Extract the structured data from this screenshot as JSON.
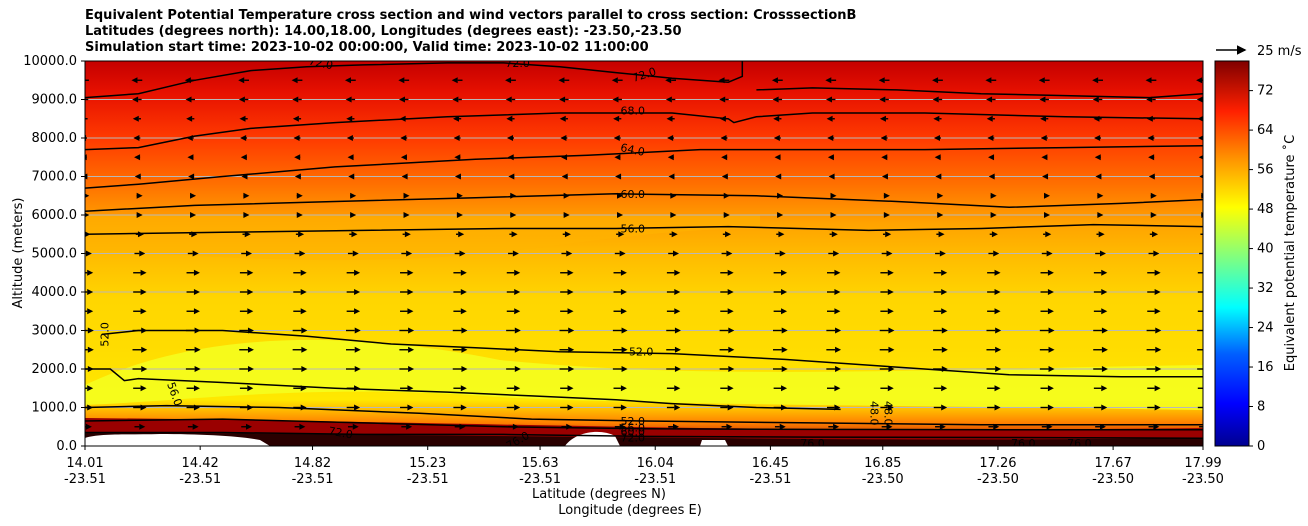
{
  "chart_data": {
    "type": "contour",
    "title_lines": [
      "Equivalent Potential Temperature cross section and wind vectors parallel to cross section: CrosssectionB",
      "Latitudes (degrees north): 14.00,18.00, Longitudes (degrees east): -23.50,-23.50",
      "Simulation start time: 2023-10-02 00:00:00, Valid time: 2023-10-02 11:00:00"
    ],
    "ylabel": "Altitude (meters)",
    "xlabel_lat": "Latitude (degrees N)",
    "xlabel_lon": "Longitude (degrees E)",
    "ylim": [
      0,
      10000
    ],
    "yticks": [
      "0.0",
      "1000.0",
      "2000.0",
      "3000.0",
      "4000.0",
      "5000.0",
      "6000.0",
      "7000.0",
      "8000.0",
      "9000.0",
      "10000.0"
    ],
    "ytick_values": [
      0,
      1000,
      2000,
      3000,
      4000,
      5000,
      6000,
      7000,
      8000,
      9000,
      10000
    ],
    "xlim": [
      14.01,
      17.99
    ],
    "xticks": [
      {
        "lat": "14.01",
        "lon": "-23.51",
        "value": 14.01
      },
      {
        "lat": "14.42",
        "lon": "-23.51",
        "value": 14.42
      },
      {
        "lat": "14.82",
        "lon": "-23.51",
        "value": 14.82
      },
      {
        "lat": "15.23",
        "lon": "-23.51",
        "value": 15.23
      },
      {
        "lat": "15.63",
        "lon": "-23.51",
        "value": 15.63
      },
      {
        "lat": "16.04",
        "lon": "-23.51",
        "value": 16.04
      },
      {
        "lat": "16.45",
        "lon": "-23.51",
        "value": 16.45
      },
      {
        "lat": "16.85",
        "lon": "-23.50",
        "value": 16.85
      },
      {
        "lat": "17.26",
        "lon": "-23.50",
        "value": 17.26
      },
      {
        "lat": "17.67",
        "lon": "-23.50",
        "value": 17.67
      },
      {
        "lat": "17.99",
        "lon": "-23.50",
        "value": 17.99
      }
    ],
    "colorbar": {
      "label": "Equivalent potential temperature ˚C",
      "range": [
        0,
        78
      ],
      "ticks": [
        "0",
        "8",
        "16",
        "24",
        "32",
        "40",
        "48",
        "56",
        "64",
        "72"
      ],
      "tick_values": [
        0,
        8,
        16,
        24,
        32,
        40,
        48,
        56,
        64,
        72
      ],
      "colors": {
        "low": "#0000a0",
        "mid": "#00ffff",
        "high": "#800000"
      }
    },
    "quiver_key": {
      "label": "25 m/s",
      "speed": 25
    },
    "contour_labels": [
      {
        "text": "72.0",
        "x": 14.85,
        "z": 9950,
        "rot": 12
      },
      {
        "text": "72.0",
        "x": 15.55,
        "z": 9950,
        "rot": 0
      },
      {
        "text": "72.0",
        "x": 16.0,
        "z": 9650,
        "rot": -18
      },
      {
        "text": "68.0",
        "x": 15.96,
        "z": 8720,
        "rot": 0
      },
      {
        "text": "64.0",
        "x": 15.96,
        "z": 7700,
        "rot": 12
      },
      {
        "text": "60.0",
        "x": 15.96,
        "z": 6550,
        "rot": 0
      },
      {
        "text": "56.0",
        "x": 15.96,
        "z": 5650,
        "rot": 0
      },
      {
        "text": "52.0",
        "x": 15.99,
        "z": 2450,
        "rot": 0
      },
      {
        "text": "52.0",
        "x": 14.08,
        "z": 2900,
        "rot": -90
      },
      {
        "text": "56.0",
        "x": 14.33,
        "z": 1350,
        "rot": 70
      },
      {
        "text": "48.0",
        "x": 16.82,
        "z": 850,
        "rot": 90
      },
      {
        "text": "48.0",
        "x": 16.87,
        "z": 850,
        "rot": 90
      },
      {
        "text": "52.0",
        "x": 15.96,
        "z": 650,
        "rot": 0
      },
      {
        "text": "56.0",
        "x": 15.96,
        "z": 480,
        "rot": 0
      },
      {
        "text": "60.0",
        "x": 15.96,
        "z": 380,
        "rot": 0
      },
      {
        "text": "72.0",
        "x": 15.96,
        "z": 220,
        "rot": 0
      },
      {
        "text": "72.0",
        "x": 14.92,
        "z": 350,
        "rot": 10
      },
      {
        "text": "76.0",
        "x": 15.55,
        "z": 150,
        "rot": -30
      },
      {
        "text": "76.0",
        "x": 16.6,
        "z": 80,
        "rot": 0
      },
      {
        "text": "76.0",
        "x": 17.35,
        "z": 80,
        "rot": 0
      },
      {
        "text": "76.0",
        "x": 17.55,
        "z": 80,
        "rot": 0
      }
    ],
    "contours": [
      {
        "level": 72,
        "points": [
          [
            14.01,
            9050
          ],
          [
            14.2,
            9150
          ],
          [
            14.4,
            9500
          ],
          [
            14.6,
            9750
          ],
          [
            14.8,
            9850
          ],
          [
            15.0,
            9900
          ],
          [
            15.3,
            9950
          ],
          [
            15.5,
            9950
          ],
          [
            15.7,
            9850
          ],
          [
            15.9,
            9700
          ],
          [
            16.1,
            9550
          ],
          [
            16.3,
            9450
          ],
          [
            16.35,
            9600
          ],
          [
            16.35,
            10000
          ]
        ]
      },
      {
        "level": 72,
        "points": [
          [
            16.4,
            9250
          ],
          [
            16.6,
            9300
          ],
          [
            16.9,
            9250
          ],
          [
            17.2,
            9150
          ],
          [
            17.5,
            9100
          ],
          [
            17.8,
            9050
          ],
          [
            17.99,
            9150
          ]
        ]
      },
      {
        "level": 68,
        "points": [
          [
            14.01,
            7700
          ],
          [
            14.2,
            7750
          ],
          [
            14.4,
            8050
          ],
          [
            14.6,
            8250
          ],
          [
            14.9,
            8400
          ],
          [
            15.3,
            8550
          ],
          [
            15.7,
            8650
          ],
          [
            16.1,
            8650
          ],
          [
            16.3,
            8500
          ],
          [
            16.32,
            8400
          ],
          [
            16.4,
            8550
          ],
          [
            16.6,
            8650
          ],
          [
            17.0,
            8650
          ],
          [
            17.5,
            8550
          ],
          [
            17.99,
            8500
          ]
        ]
      },
      {
        "level": 64,
        "points": [
          [
            14.01,
            6700
          ],
          [
            14.2,
            6800
          ],
          [
            14.5,
            7000
          ],
          [
            14.9,
            7250
          ],
          [
            15.4,
            7450
          ],
          [
            15.8,
            7550
          ],
          [
            16.2,
            7700
          ],
          [
            16.6,
            7700
          ],
          [
            17.0,
            7700
          ],
          [
            17.5,
            7750
          ],
          [
            17.99,
            7800
          ]
        ]
      },
      {
        "level": 60,
        "points": [
          [
            14.01,
            6100
          ],
          [
            14.4,
            6250
          ],
          [
            14.9,
            6350
          ],
          [
            15.4,
            6450
          ],
          [
            15.9,
            6550
          ],
          [
            16.4,
            6500
          ],
          [
            16.9,
            6350
          ],
          [
            17.3,
            6200
          ],
          [
            17.7,
            6300
          ],
          [
            17.99,
            6400
          ]
        ]
      },
      {
        "level": 56,
        "points": [
          [
            14.01,
            5500
          ],
          [
            14.5,
            5550
          ],
          [
            15.0,
            5600
          ],
          [
            15.5,
            5650
          ],
          [
            15.9,
            5650
          ],
          [
            16.3,
            5700
          ],
          [
            16.8,
            5600
          ],
          [
            17.2,
            5650
          ],
          [
            17.6,
            5750
          ],
          [
            17.99,
            5700
          ]
        ]
      },
      {
        "level": 52,
        "points": [
          [
            14.07,
            2900
          ],
          [
            14.2,
            3000
          ],
          [
            14.5,
            3000
          ],
          [
            14.8,
            2850
          ],
          [
            15.1,
            2650
          ],
          [
            15.4,
            2550
          ],
          [
            15.7,
            2450
          ],
          [
            16.1,
            2400
          ],
          [
            16.5,
            2250
          ],
          [
            16.9,
            2050
          ],
          [
            17.3,
            1850
          ],
          [
            17.7,
            1800
          ],
          [
            17.99,
            1800
          ]
        ]
      },
      {
        "level": 56,
        "points": [
          [
            14.01,
            2000
          ],
          [
            14.1,
            2000
          ],
          [
            14.15,
            1700
          ],
          [
            14.2,
            1750
          ],
          [
            14.5,
            1650
          ],
          [
            14.9,
            1500
          ],
          [
            15.3,
            1400
          ],
          [
            15.6,
            1300
          ],
          [
            15.9,
            1200
          ],
          [
            16.1,
            1100
          ],
          [
            16.4,
            1000
          ],
          [
            16.7,
            950
          ]
        ]
      },
      {
        "level": 52,
        "points": [
          [
            14.01,
            1000
          ],
          [
            14.3,
            1050
          ],
          [
            14.7,
            1000
          ],
          [
            15.2,
            850
          ],
          [
            15.6,
            700
          ],
          [
            16.0,
            650
          ],
          [
            16.6,
            600
          ],
          [
            17.2,
            550
          ],
          [
            17.99,
            550
          ]
        ]
      },
      {
        "level": 60,
        "points": [
          [
            14.01,
            650
          ],
          [
            14.5,
            700
          ],
          [
            15.0,
            600
          ],
          [
            15.5,
            500
          ],
          [
            16.0,
            450
          ],
          [
            16.6,
            430
          ],
          [
            17.3,
            420
          ],
          [
            17.99,
            420
          ]
        ]
      },
      {
        "level": 72,
        "points": [
          [
            14.01,
            350
          ],
          [
            14.5,
            350
          ],
          [
            15.0,
            300
          ],
          [
            15.5,
            300
          ],
          [
            16.0,
            250
          ],
          [
            16.6,
            230
          ],
          [
            17.3,
            220
          ],
          [
            17.99,
            200
          ]
        ]
      }
    ],
    "wind": {
      "columns": [
        14.01,
        14.2,
        14.39,
        14.58,
        14.77,
        14.96,
        15.15,
        15.34,
        15.53,
        15.72,
        15.91,
        16.1,
        16.29,
        16.48,
        16.67,
        16.86,
        17.05,
        17.24,
        17.43,
        17.62,
        17.81,
        17.99
      ],
      "levels": [
        {
          "z": 9500,
          "u": -6
        },
        {
          "z": 9000,
          "u": -5
        },
        {
          "z": 8500,
          "u": -4
        },
        {
          "z": 8000,
          "u": -3
        },
        {
          "z": 7500,
          "u": -2
        },
        {
          "z": 7000,
          "u": -1
        },
        {
          "z": 6500,
          "u": 2
        },
        {
          "z": 6000,
          "u": 2
        },
        {
          "z": 5500,
          "u": 4
        },
        {
          "z": 5000,
          "u": 6
        },
        {
          "z": 4500,
          "u": 8
        },
        {
          "z": 4000,
          "u": 8
        },
        {
          "z": 3500,
          "u": 8
        },
        {
          "z": 3000,
          "u": 9
        },
        {
          "z": 2500,
          "u": 9
        },
        {
          "z": 2000,
          "u": 9
        },
        {
          "z": 1500,
          "u": 8
        },
        {
          "z": 1000,
          "u": 8
        },
        {
          "z": 500,
          "u": 6
        }
      ]
    }
  }
}
